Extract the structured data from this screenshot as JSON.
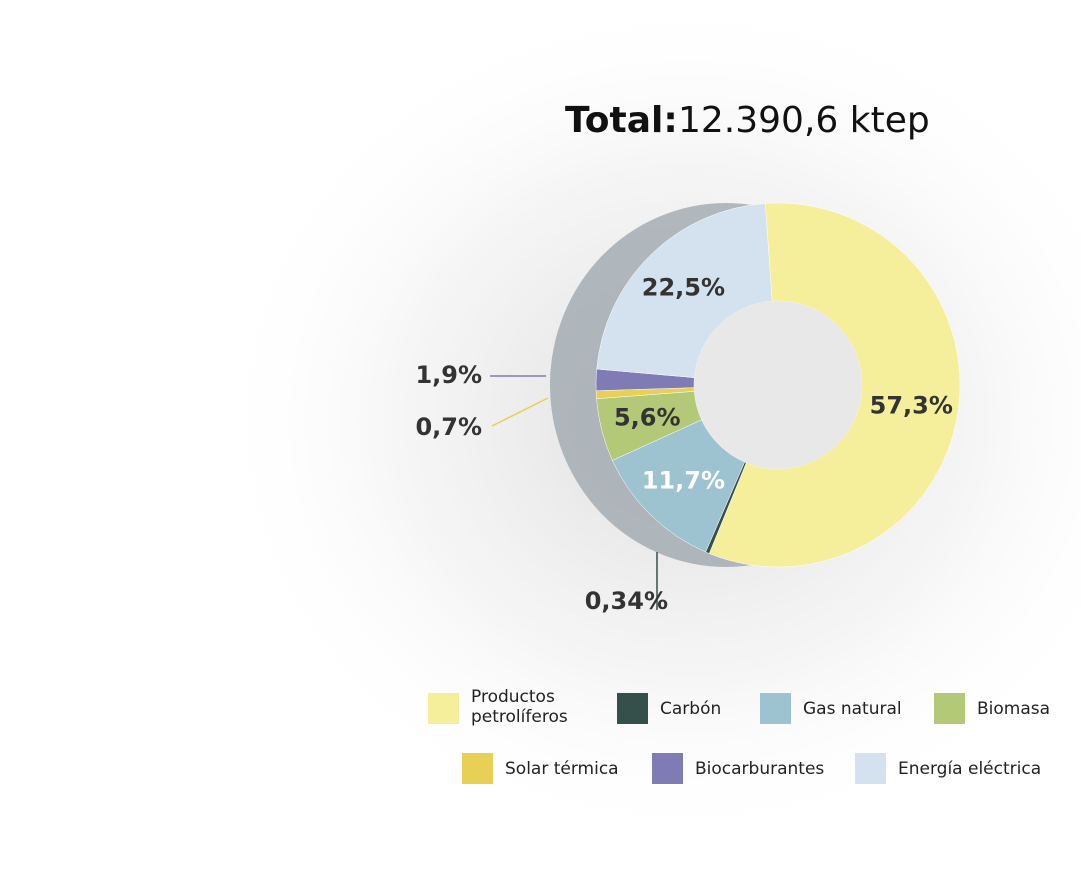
{
  "chart_data": {
    "type": "donut",
    "title": "Total:",
    "total": "12.390,6 ktep",
    "categories": [
      "Productos petrolíferos",
      "Carbón",
      "Gas natural",
      "Biomasa",
      "Solar térmica",
      "Biocarburantes",
      "Energía eléctrica"
    ],
    "values": [
      57.3,
      0.34,
      11.7,
      5.6,
      0.7,
      1.9,
      22.5
    ],
    "value_labels": [
      "57,3%",
      "0,34%",
      "11,7%",
      "5,6%",
      "0,7%",
      "1,9%",
      "22,5%"
    ],
    "colors": [
      "#f5ee9a",
      "#35504a",
      "#9cc3cf",
      "#b3c977",
      "#e8cf55",
      "#7f7bb4",
      "#d4e1ee"
    ]
  }
}
